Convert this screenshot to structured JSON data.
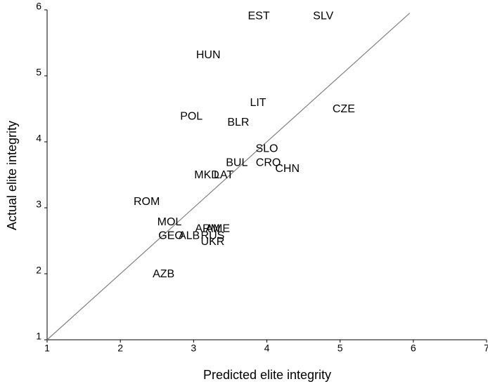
{
  "chart_data": {
    "type": "scatter",
    "x_label": "Predicted elite integrity",
    "y_label": "Actual elite integrity",
    "labels": [
      "EST",
      "SLV",
      "HUN",
      "LIT",
      "CZE",
      "POL",
      "BLR",
      "SLO",
      "BUL",
      "CRO",
      "CHN",
      "MKD",
      "LAT",
      "ROM",
      "MOL",
      "ARM",
      "AME",
      "GEO",
      "ALB",
      "RUS",
      "UKR",
      "AZB"
    ],
    "x": [
      3.89,
      4.77,
      3.2,
      3.88,
      5.05,
      2.97,
      3.61,
      4.0,
      3.59,
      4.02,
      4.28,
      3.18,
      3.41,
      2.36,
      2.67,
      3.19,
      3.33,
      2.69,
      2.94,
      3.26,
      3.26,
      2.59
    ],
    "y": [
      5.9,
      5.9,
      5.31,
      4.59,
      4.49,
      4.38,
      4.29,
      3.89,
      3.68,
      3.68,
      3.59,
      3.49,
      3.49,
      3.09,
      2.78,
      2.68,
      2.68,
      2.57,
      2.57,
      2.57,
      2.48,
      1.99
    ],
    "reference_line": {
      "x": [
        1,
        5.95
      ],
      "y": [
        1,
        5.95
      ],
      "color": "#808080"
    },
    "xlim": [
      1,
      7
    ],
    "xticks": [
      1,
      2,
      3,
      4,
      5,
      6,
      7
    ],
    "ylim": [
      1,
      6
    ],
    "yticks": [
      1,
      2,
      3,
      4,
      5,
      6
    ]
  }
}
